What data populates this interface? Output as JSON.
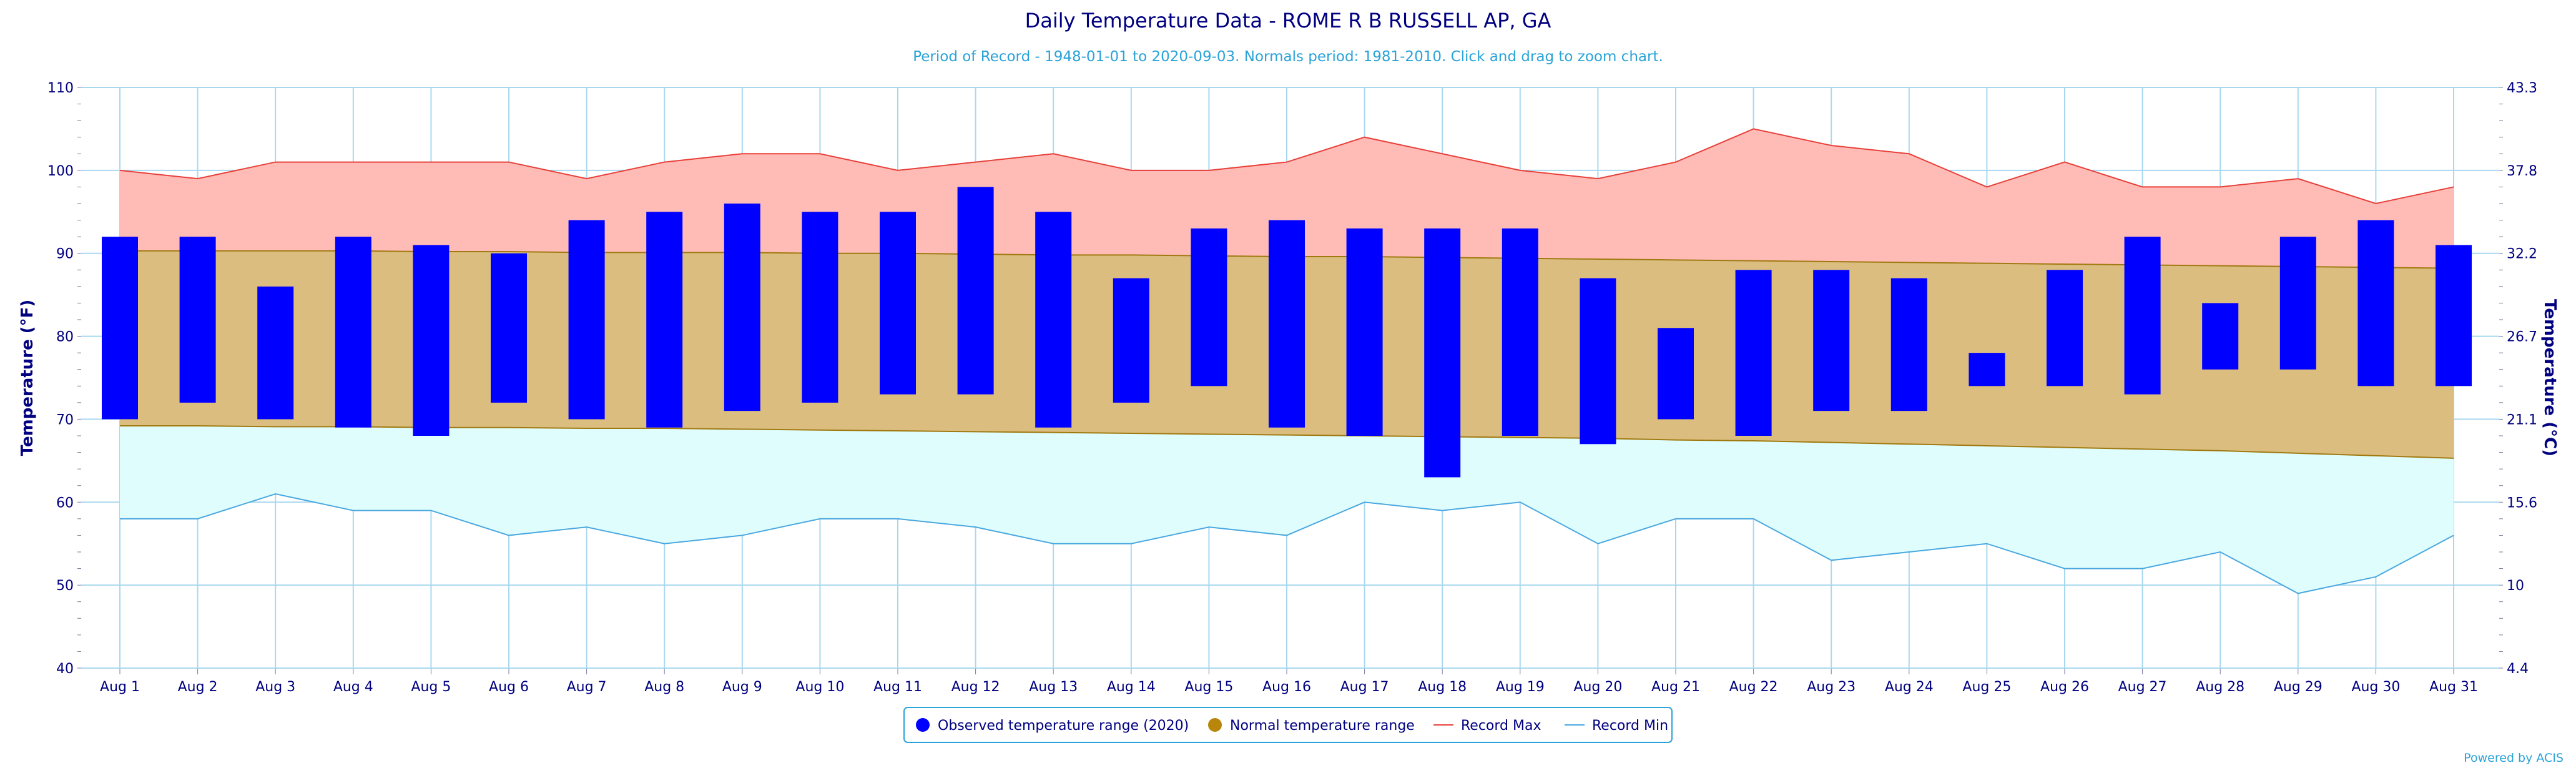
{
  "chart_data": {
    "type": "bar",
    "title": "Daily Temperature Data - ROME R B RUSSELL AP, GA",
    "subtitle": "Period of Record - 1948-01-01 to 2020-09-03. Normals period: 1981-2010. Click and drag to zoom chart.",
    "ylabel_left": "Temperature (°F)",
    "ylabel_right": "Temperature (°C)",
    "ylim": [
      40,
      110
    ],
    "yticks_left": [
      "40",
      "50",
      "60",
      "70",
      "80",
      "90",
      "100",
      "110"
    ],
    "yticks_right": [
      "4.4",
      "10",
      "15.6",
      "21.1",
      "26.7",
      "32.2",
      "37.8",
      "43.3"
    ],
    "grid": true,
    "legend_position": "bottom-center",
    "categories": [
      "Aug 1",
      "Aug 2",
      "Aug 3",
      "Aug 4",
      "Aug 5",
      "Aug 6",
      "Aug 7",
      "Aug 8",
      "Aug 9",
      "Aug 10",
      "Aug 11",
      "Aug 12",
      "Aug 13",
      "Aug 14",
      "Aug 15",
      "Aug 16",
      "Aug 17",
      "Aug 18",
      "Aug 19",
      "Aug 20",
      "Aug 21",
      "Aug 22",
      "Aug 23",
      "Aug 24",
      "Aug 25",
      "Aug 26",
      "Aug 27",
      "Aug 28",
      "Aug 29",
      "Aug 30",
      "Aug 31"
    ],
    "series": [
      {
        "name": "Observed temperature range (2020)",
        "type": "columnrange",
        "color": "#0000ff",
        "low": [
          70,
          72,
          70,
          69,
          68,
          72,
          70,
          69,
          71,
          72,
          73,
          73,
          69,
          72,
          74,
          69,
          68,
          63,
          68,
          67,
          70,
          68,
          71,
          71,
          74,
          74,
          73,
          76,
          76,
          74,
          74
        ],
        "high": [
          92,
          92,
          86,
          92,
          91,
          90,
          94,
          95,
          96,
          95,
          95,
          98,
          95,
          87,
          93,
          94,
          93,
          93,
          93,
          87,
          81,
          88,
          88,
          87,
          78,
          88,
          92,
          84,
          92,
          94,
          91
        ]
      },
      {
        "name": "Normal temperature range",
        "type": "arearange",
        "color": "#b8860b",
        "low": [
          69.2,
          69.2,
          69.1,
          69.1,
          69.0,
          69.0,
          68.9,
          68.9,
          68.8,
          68.7,
          68.6,
          68.5,
          68.4,
          68.3,
          68.2,
          68.1,
          68.0,
          67.9,
          67.8,
          67.7,
          67.5,
          67.4,
          67.2,
          67.0,
          66.8,
          66.6,
          66.4,
          66.2,
          65.9,
          65.6,
          65.3
        ],
        "high": [
          90.3,
          90.3,
          90.3,
          90.3,
          90.2,
          90.2,
          90.1,
          90.1,
          90.1,
          90.0,
          90.0,
          89.9,
          89.8,
          89.8,
          89.7,
          89.6,
          89.6,
          89.5,
          89.4,
          89.3,
          89.2,
          89.1,
          89.0,
          88.9,
          88.8,
          88.7,
          88.6,
          88.5,
          88.4,
          88.3,
          88.2
        ]
      },
      {
        "name": "Record Max",
        "type": "line",
        "color": "#e8403a",
        "values": [
          100,
          99,
          101,
          101,
          101,
          101,
          99,
          101,
          102,
          102,
          100,
          101,
          102,
          100,
          100,
          101,
          104,
          102,
          100,
          99,
          101,
          105,
          103,
          102,
          98,
          101,
          98,
          98,
          99,
          96,
          98
        ]
      },
      {
        "name": "Record Min",
        "type": "line",
        "color": "#4aa8e0",
        "values": [
          58,
          58,
          61,
          59,
          59,
          56,
          57,
          55,
          56,
          58,
          58,
          57,
          55,
          55,
          57,
          56,
          60,
          59,
          60,
          55,
          58,
          58,
          53,
          54,
          55,
          52,
          52,
          54,
          49,
          51,
          56
        ]
      }
    ],
    "credit": "Powered by ACIS"
  }
}
